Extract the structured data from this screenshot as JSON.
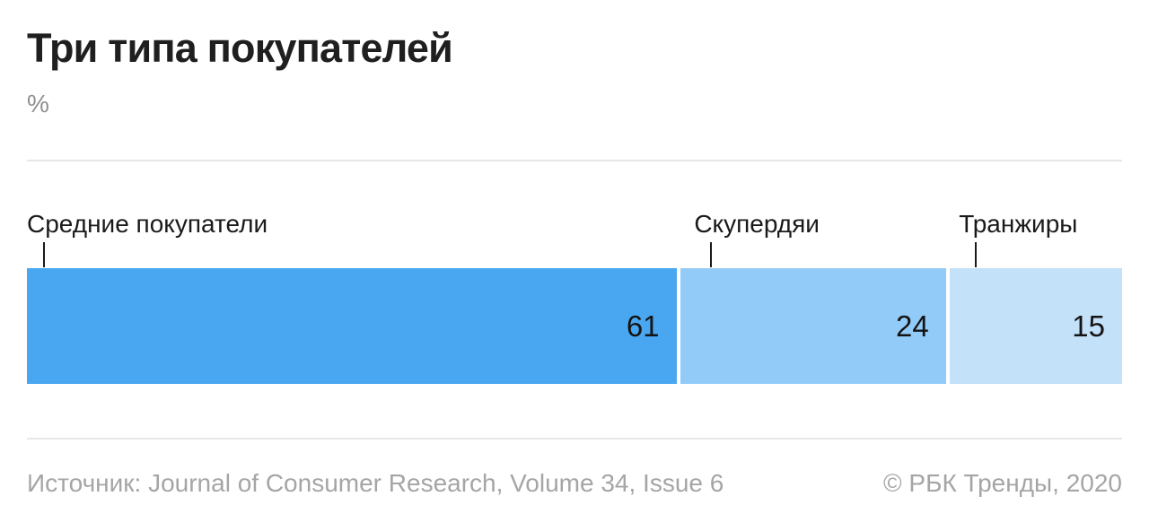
{
  "header": {
    "title": "Три типа покупателей",
    "unit": "%"
  },
  "chart_data": {
    "type": "bar",
    "orientation": "horizontal-stacked",
    "title": "Три типа покупателей",
    "unit": "%",
    "categories": [
      "Средние покупатели",
      "Скупердяи",
      "Транжиры"
    ],
    "values": [
      61,
      24,
      15
    ],
    "colors": [
      "#49a7f1",
      "#92cbf8",
      "#c4e1fa"
    ],
    "xlim": [
      0,
      100
    ],
    "value_labels_shown": true,
    "legend": "none",
    "grid": false
  },
  "footer": {
    "source": "Источник: Journal of Consumer Research, Volume 34, Issue 6",
    "copyright": "© РБК Тренды, 2020"
  },
  "colors": {
    "title_text": "#1f1f1f",
    "label_text": "#1a1a1a",
    "muted_text": "#a5a5a5",
    "unit_text": "#8f8f8f",
    "divider": "#e7e7e7",
    "background": "#ffffff"
  }
}
